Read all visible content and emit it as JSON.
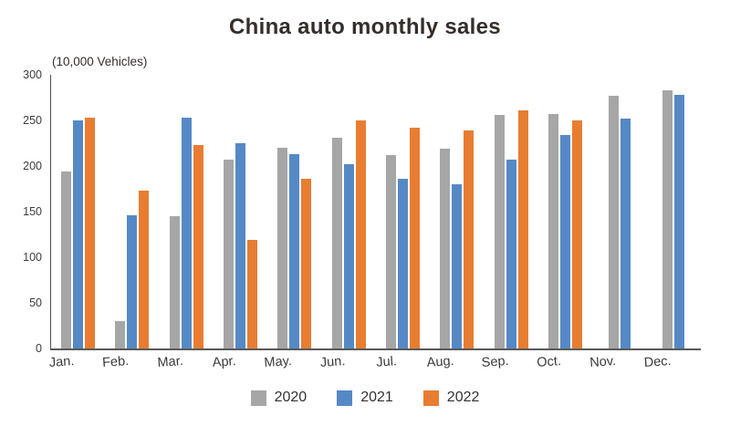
{
  "chart_data": {
    "type": "bar",
    "title": "China auto monthly sales",
    "unit_label": "(10,000 Vehicles)",
    "xlabel": "",
    "ylabel": "(10,000 Vehicles)",
    "categories": [
      "Jan.",
      "Feb.",
      "Mar.",
      "Apr.",
      "May.",
      "Jun.",
      "Jul.",
      "Aug.",
      "Sep.",
      "Oct.",
      "Nov.",
      "Dec."
    ],
    "series": [
      {
        "name": "2020",
        "color": "#a6a6a6",
        "values": [
          194,
          30,
          145,
          207,
          220,
          231,
          212,
          219,
          256,
          257,
          277,
          283
        ]
      },
      {
        "name": "2021",
        "color": "#5589c6",
        "values": [
          250,
          146,
          253,
          225,
          213,
          202,
          186,
          180,
          207,
          234,
          252,
          278
        ]
      },
      {
        "name": "2022",
        "color": "#e87d31",
        "values": [
          253,
          173,
          223,
          119,
          186,
          250,
          242,
          239,
          261,
          250,
          null,
          null
        ]
      }
    ],
    "ylim": [
      0,
      300
    ],
    "yticks": [
      0,
      50,
      100,
      150,
      200,
      250,
      300
    ],
    "grid": false,
    "legend_position": "bottom",
    "axis_color": "#595959",
    "tick_text_color": "#3d3d3d",
    "title_color": "#342e2b"
  }
}
